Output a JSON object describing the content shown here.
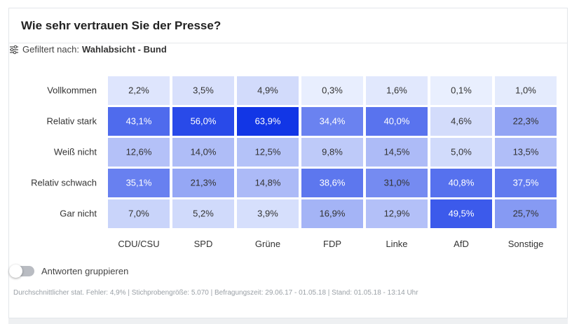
{
  "card": {
    "title": "Wie sehr vertrauen Sie der Presse?"
  },
  "filter": {
    "icon": "sliders-icon",
    "label": "Gefiltert nach:",
    "value": "Wahlabsicht - Bund"
  },
  "toggle": {
    "label": "Antworten gruppieren",
    "on": false
  },
  "footer": {
    "text": "Durchschnittlicher stat. Fehler: 4,9% | Stichprobengröße: 5.070 | Befragungszeit: 29.06.17 - 01.05.18 | Stand: 01.05.18 - 13:14 Uhr"
  },
  "colors": {
    "low": "#eaf0fe",
    "high": "#1236e6",
    "text_dark": "#333333",
    "text_light": "#ffffff"
  },
  "chart_data": {
    "type": "heatmap",
    "title": "Wie sehr vertrauen Sie der Presse?",
    "columns": [
      "CDU/CSU",
      "SPD",
      "Grüne",
      "FDP",
      "Linke",
      "AfD",
      "Sonstige"
    ],
    "rows": [
      "Vollkommen",
      "Relativ stark",
      "Weiß nicht",
      "Relativ schwach",
      "Gar nicht"
    ],
    "values": [
      [
        2.2,
        3.5,
        4.9,
        0.3,
        1.6,
        0.1,
        1.0
      ],
      [
        43.1,
        56.0,
        63.9,
        34.4,
        40.0,
        4.6,
        22.3
      ],
      [
        12.6,
        14.0,
        12.5,
        9.8,
        14.5,
        5.0,
        13.5
      ],
      [
        35.1,
        21.3,
        14.8,
        38.6,
        31.0,
        40.8,
        37.5
      ],
      [
        7.0,
        5.2,
        3.9,
        16.9,
        12.9,
        49.5,
        25.7
      ]
    ],
    "labels": [
      [
        "2,2%",
        "3,5%",
        "4,9%",
        "0,3%",
        "1,6%",
        "0,1%",
        "1,0%"
      ],
      [
        "43,1%",
        "56,0%",
        "63,9%",
        "34,4%",
        "40,0%",
        "4,6%",
        "22,3%"
      ],
      [
        "12,6%",
        "14,0%",
        "12,5%",
        "9,8%",
        "14,5%",
        "5,0%",
        "13,5%"
      ],
      [
        "35,1%",
        "21,3%",
        "14,8%",
        "38,6%",
        "31,0%",
        "40,8%",
        "37,5%"
      ],
      [
        "7,0%",
        "5,2%",
        "3,9%",
        "16,9%",
        "12,9%",
        "49,5%",
        "25,7%"
      ]
    ],
    "unit": "%",
    "value_range": [
      0,
      63.9
    ],
    "legend": "none"
  }
}
